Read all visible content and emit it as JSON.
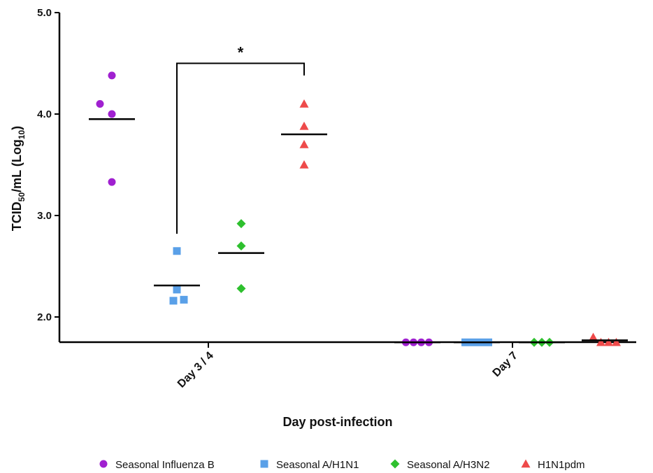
{
  "chart_data": {
    "type": "scatter",
    "ylabel": {
      "pre": "TCID",
      "sub": "50",
      "mid": "/mL (Log",
      "sub2": "10",
      "post": ")"
    },
    "xlabel": "Day post-infection",
    "categories": [
      "Day 3 / 4",
      "Day 7"
    ],
    "ylim": [
      1.75,
      5.0
    ],
    "yticks": [
      {
        "value": 2.0,
        "label": "2.0"
      },
      {
        "value": 3.0,
        "label": "3.0"
      },
      {
        "value": 4.0,
        "label": "4.0"
      },
      {
        "value": 5.0,
        "label": "5.0"
      }
    ],
    "series": [
      {
        "name": "Seasonal Influenza B",
        "marker": "circle",
        "color": "#a020d0",
        "points": {
          "Day 3 / 4": [
            4.38,
            4.1,
            4.0,
            3.33
          ],
          "Day 7": [
            1.75,
            1.75,
            1.75,
            1.75
          ]
        },
        "means": {
          "Day 3 / 4": 3.95,
          "Day 7": 1.75
        }
      },
      {
        "name": "Seasonal A/H1N1",
        "marker": "square",
        "color": "#5aa0e8",
        "points": {
          "Day 3 / 4": [
            2.65,
            2.27,
            2.16,
            2.17
          ],
          "Day 7": [
            1.75,
            1.75,
            1.75,
            1.75
          ]
        },
        "means": {
          "Day 3 / 4": 2.31,
          "Day 7": 1.75
        }
      },
      {
        "name": "Seasonal A/H3N2",
        "marker": "diamond",
        "color": "#2ec02e",
        "points": {
          "Day 3 / 4": [
            2.92,
            2.7,
            2.28
          ],
          "Day 7": [
            1.75,
            1.75,
            1.75
          ]
        },
        "means": {
          "Day 3 / 4": 2.63,
          "Day 7": 1.75
        }
      },
      {
        "name": "H1N1pdm",
        "marker": "triangle",
        "color": "#ee4a4a",
        "points": {
          "Day 3 / 4": [
            4.1,
            3.88,
            3.7,
            3.5
          ],
          "Day 7": [
            1.8,
            1.75,
            1.75,
            1.75
          ]
        },
        "means": {
          "Day 3 / 4": 3.8,
          "Day 7": 1.77
        }
      }
    ],
    "annotations": [
      {
        "type": "significance-bracket",
        "label": "*",
        "from_series": "Seasonal A/H1N1",
        "to_series": "H1N1pdm",
        "category": "Day 3 / 4"
      }
    ],
    "legend_position": "bottom",
    "grid": false
  }
}
